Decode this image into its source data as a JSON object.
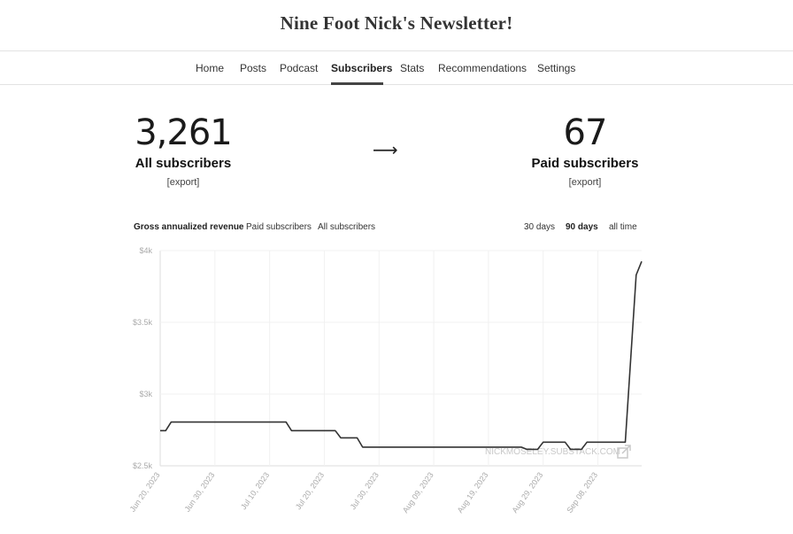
{
  "site": {
    "title": "Nine Foot Nick's Newsletter!"
  },
  "nav": {
    "items": [
      {
        "label": "Home"
      },
      {
        "label": "Posts"
      },
      {
        "label": "Podcast"
      },
      {
        "label": "Subscribers",
        "active": true
      },
      {
        "label": "Stats"
      },
      {
        "label": "Recommendations"
      },
      {
        "label": "Settings"
      }
    ]
  },
  "stats": {
    "all": {
      "value": "3,261",
      "label": "All subscribers",
      "export": "[export]"
    },
    "arrow": "⟶",
    "paid": {
      "value": "67",
      "label": "Paid subscribers",
      "export": "[export]"
    }
  },
  "chart_tabs": {
    "metrics": [
      "Gross annualized revenue",
      "Paid subscribers",
      "All subscribers"
    ],
    "active_metric": "Gross annualized revenue",
    "ranges": [
      "30 days",
      "90 days",
      "all time"
    ],
    "active_range": "90 days"
  },
  "chart_data": {
    "type": "line",
    "title": "",
    "xlabel": "",
    "ylabel": "",
    "ylim": [
      2500,
      4000
    ],
    "grid": true,
    "y_ticks": [
      "$2.5k",
      "$3k",
      "$3.5k",
      "$4k"
    ],
    "x_ticks": [
      "Jun 20, 2023",
      "Jun 30, 2023",
      "Jul 10, 2023",
      "Jul 20, 2023",
      "Jul 30, 2023",
      "Aug 09, 2023",
      "Aug 19, 2023",
      "Aug 29, 2023",
      "Sep 08, 2023"
    ],
    "watermark": "NICKMOSELEY.SUBSTACK.COM",
    "series": [
      {
        "points": [
          [
            "2023-06-20",
            2745
          ],
          [
            "2023-06-21",
            2745
          ],
          [
            "2023-06-22",
            2805
          ],
          [
            "2023-06-25",
            2805
          ],
          [
            "2023-07-13",
            2805
          ],
          [
            "2023-07-14",
            2745
          ],
          [
            "2023-07-22",
            2745
          ],
          [
            "2023-07-23",
            2695
          ],
          [
            "2023-07-26",
            2695
          ],
          [
            "2023-07-27",
            2630
          ],
          [
            "2023-08-20",
            2630
          ],
          [
            "2023-08-25",
            2630
          ],
          [
            "2023-08-26",
            2615
          ],
          [
            "2023-08-28",
            2615
          ],
          [
            "2023-08-29",
            2665
          ],
          [
            "2023-09-02",
            2665
          ],
          [
            "2023-09-03",
            2615
          ],
          [
            "2023-09-05",
            2615
          ],
          [
            "2023-09-06",
            2665
          ],
          [
            "2023-09-13",
            2665
          ],
          [
            "2023-09-15",
            3830
          ],
          [
            "2023-09-16",
            3925
          ]
        ]
      }
    ]
  }
}
